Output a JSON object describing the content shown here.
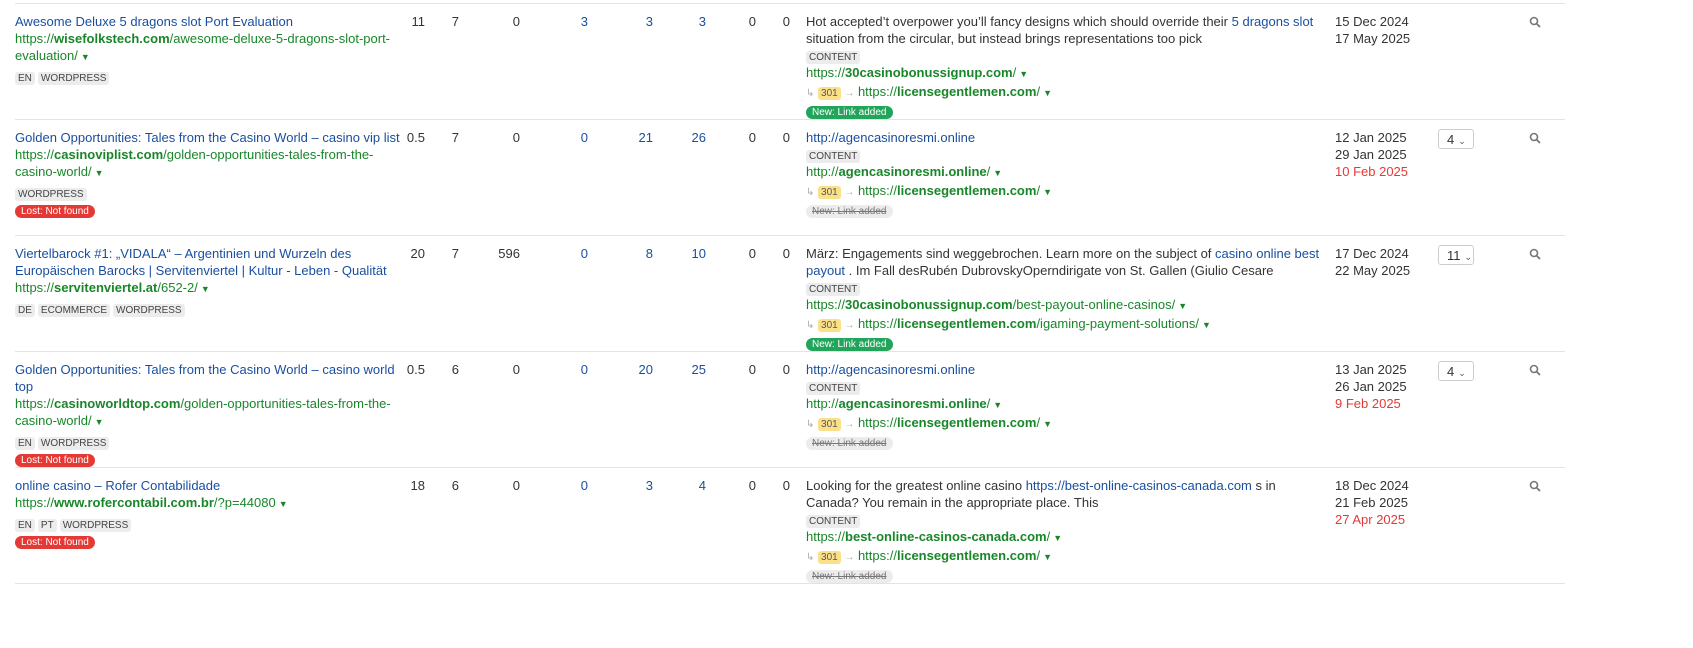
{
  "rows": [
    {
      "title": "Awesome Deluxe 5 dragons slot Port Evaluation",
      "url_prefix": "https://",
      "url_domain": "wisefolkstech.com",
      "url_path": "/awesome-deluxe-5-dragons-slot-port-evaluation/",
      "tags": [
        "EN",
        "WORDPRESS"
      ],
      "status": "",
      "nums": [
        "11",
        "7",
        "0",
        "3",
        "3",
        "3",
        "0",
        "0"
      ],
      "anchor_before": "Hot accepted’t overpower you’ll fancy designs which should override their ",
      "anchor_link": "5 dragons slot",
      "anchor_after": " situation from the circular, but instead brings representations too pick",
      "type": "CONTENT",
      "target_prefix": "https://",
      "target_domain": "30casinobonussignup.com",
      "target_path": "/",
      "redirect_code": "301",
      "redirect_prefix": "https://",
      "redirect_domain": "licensegentlemen.com",
      "redirect_path": "/",
      "link_badge": "New: Link added",
      "link_badge_active": true,
      "dates": [
        "15 Dec 2024",
        "17 May 2025",
        ""
      ],
      "dropdown": ""
    },
    {
      "title": "Golden Opportunities: Tales from the Casino World – casino vip list",
      "url_prefix": "https://",
      "url_domain": "casinoviplist.com",
      "url_path": "/golden-opportunities-tales-from-the-casino-world/",
      "tags": [
        "WORDPRESS"
      ],
      "status": "Lost: Not found",
      "nums": [
        "0.5",
        "7",
        "0",
        "0",
        "21",
        "26",
        "0",
        "0"
      ],
      "anchor_before": "",
      "anchor_link": "http://agencasinoresmi.online",
      "anchor_after": "",
      "type": "CONTENT",
      "target_prefix": "http://",
      "target_domain": "agencasinoresmi.online",
      "target_path": "/",
      "redirect_code": "301",
      "redirect_prefix": "https://",
      "redirect_domain": "licensegentlemen.com",
      "redirect_path": "/",
      "link_badge": "New: Link added",
      "link_badge_active": false,
      "dates": [
        "12 Jan 2025",
        "29 Jan 2025",
        "10 Feb 2025"
      ],
      "dropdown": "4"
    },
    {
      "title": "Viertelbarock #1: „VIDALA“ – Argentinien und Wurzeln des Europäischen Barocks | Servitenviertel | Kultur - Leben - Qualität",
      "url_prefix": "https://",
      "url_domain": "servitenviertel.at",
      "url_path": "/652-2/",
      "tags": [
        "DE",
        "ECOMMERCE",
        "WORDPRESS"
      ],
      "status": "",
      "nums": [
        "20",
        "7",
        "596",
        "0",
        "8",
        "10",
        "0",
        "0"
      ],
      "anchor_before": "März: Engagements sind weggebrochen. Learn more on the subject of ",
      "anchor_link": "casino online best payout",
      "anchor_after": " . Im Fall desRubén DubrovskyOperndirigate von St. Gallen (Giulio Cesare",
      "type": "CONTENT",
      "target_prefix": "https://",
      "target_domain": "30casinobonussignup.com",
      "target_path": "/best-payout-online-casinos/",
      "redirect_code": "301",
      "redirect_prefix": "https://",
      "redirect_domain": "licensegentlemen.com",
      "redirect_path": "/igaming-payment-solutions/",
      "link_badge": "New: Link added",
      "link_badge_active": true,
      "dates": [
        "17 Dec 2024",
        "22 May 2025",
        ""
      ],
      "dropdown": "11"
    },
    {
      "title": "Golden Opportunities: Tales from the Casino World – casino world top",
      "url_prefix": "https://",
      "url_domain": "casinoworldtop.com",
      "url_path": "/golden-opportunities-tales-from-the-casino-world/",
      "tags": [
        "EN",
        "WORDPRESS"
      ],
      "status": "Lost: Not found",
      "nums": [
        "0.5",
        "6",
        "0",
        "0",
        "20",
        "25",
        "0",
        "0"
      ],
      "anchor_before": "",
      "anchor_link": "http://agencasinoresmi.online",
      "anchor_after": "",
      "type": "CONTENT",
      "target_prefix": "http://",
      "target_domain": "agencasinoresmi.online",
      "target_path": "/",
      "redirect_code": "301",
      "redirect_prefix": "https://",
      "redirect_domain": "licensegentlemen.com",
      "redirect_path": "/",
      "link_badge": "New: Link added",
      "link_badge_active": false,
      "dates": [
        "13 Jan 2025",
        "26 Jan 2025",
        "9 Feb 2025"
      ],
      "dropdown": "4"
    },
    {
      "title": "online casino – Rofer Contabilidade",
      "url_prefix": "https://",
      "url_domain": "www.rofercontabil.com.br",
      "url_path": "/?p=44080",
      "tags": [
        "EN",
        "PT",
        "WORDPRESS"
      ],
      "status": "Lost: Not found",
      "nums": [
        "18",
        "6",
        "0",
        "0",
        "3",
        "4",
        "0",
        "0"
      ],
      "anchor_before": "Looking for the greatest online casino ",
      "anchor_link": "https://best-online-casinos-canada.com",
      "anchor_after": " s in Canada? You remain in the appropriate place. This",
      "type": "CONTENT",
      "target_prefix": "https://",
      "target_domain": "best-online-casinos-canada.com",
      "target_path": "/",
      "redirect_code": "301",
      "redirect_prefix": "https://",
      "redirect_domain": "licensegentlemen.com",
      "redirect_path": "/",
      "link_badge": "New: Link added",
      "link_badge_active": false,
      "dates": [
        "18 Dec 2024",
        "21 Feb 2025",
        "27 Apr 2025"
      ],
      "dropdown": ""
    }
  ],
  "colors": {
    "link": "#1a4fa0",
    "url": "#19862a",
    "lost": "#e53935",
    "new": "#22a55b",
    "redirect": "#fbe08a"
  }
}
